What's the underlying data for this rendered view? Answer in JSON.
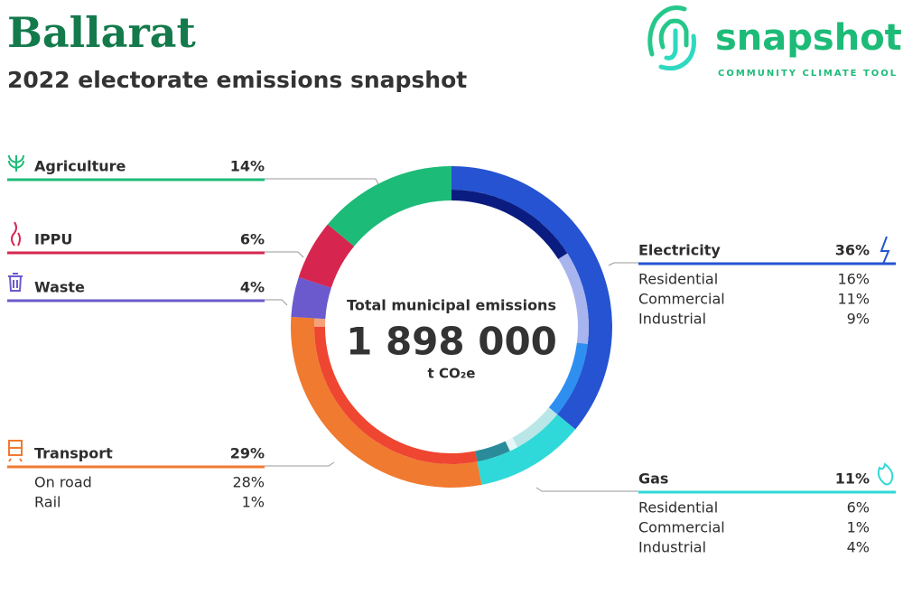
{
  "header": {
    "title": "Ballarat",
    "subtitle": "2022 electorate emissions snapshot",
    "logo": "snapshot",
    "logo_tagline": "COMMUNITY CLIMATE TOOL"
  },
  "chart_data": {
    "type": "donut",
    "center_label": "Total municipal emissions",
    "total": {
      "value": 1898000,
      "label": "1 898 000"
    },
    "unit": "t CO₂e",
    "sectors": [
      {
        "name": "Electricity",
        "color": "#2553d1",
        "value": 36,
        "value_label": "36%",
        "subsectors": [
          {
            "name": "Residential",
            "color": "#0b1c80",
            "value": 16,
            "value_label": "16%"
          },
          {
            "name": "Commercial",
            "color": "#a8b4ee",
            "value": 11,
            "value_label": "11%"
          },
          {
            "name": "Industrial",
            "color": "#2e8ff0",
            "value": 9,
            "value_label": "9%"
          }
        ]
      },
      {
        "name": "Gas",
        "color": "#2fd9d9",
        "value": 11,
        "value_label": "11%",
        "subsectors": [
          {
            "name": "Residential",
            "color": "#b9e6e6",
            "value": 6,
            "value_label": "6%"
          },
          {
            "name": "Commercial",
            "color": "#e6f7f7",
            "value": 1,
            "value_label": "1%"
          },
          {
            "name": "Industrial",
            "color": "#2a8c9a",
            "value": 4,
            "value_label": "4%"
          }
        ]
      },
      {
        "name": "Transport",
        "color": "#f07a30",
        "value": 29,
        "value_label": "29%",
        "subsectors": [
          {
            "name": "On road",
            "color": "#ee4630",
            "value": 28,
            "value_label": "28%"
          },
          {
            "name": "Rail",
            "color": "#f6a07a",
            "value": 1,
            "value_label": "1%"
          }
        ]
      },
      {
        "name": "Waste",
        "color": "#6a5acd",
        "value": 4,
        "value_label": "4%"
      },
      {
        "name": "IPPU",
        "color": "#d6264f",
        "value": 6,
        "value_label": "6%"
      },
      {
        "name": "Agriculture",
        "color": "#1dbb78",
        "value": 14,
        "value_label": "14%"
      }
    ]
  }
}
